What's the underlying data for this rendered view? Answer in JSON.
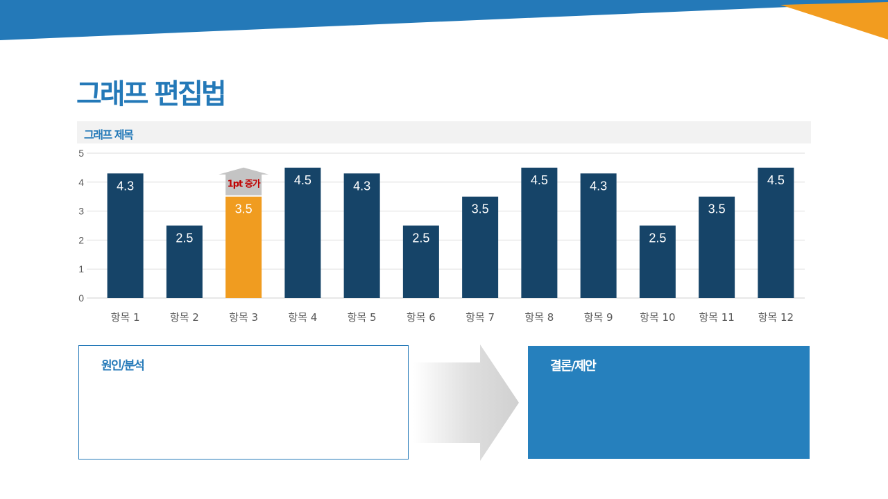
{
  "slide": {
    "title": "그래프 편집법",
    "chart_title": "그래프 제목",
    "cause_label": "원인/분석",
    "conclusion_label": "결론/제안",
    "callout_label": "1pt 증가"
  },
  "colors": {
    "primary": "#2479b8",
    "bar": "#164468",
    "highlight": "#f09c20",
    "callout_text": "#c00000",
    "accent_orange": "#f29c1f"
  },
  "chart_data": {
    "type": "bar",
    "title": "그래프 제목",
    "categories": [
      "항목 1",
      "항목 2",
      "항목 3",
      "항목 4",
      "항목 5",
      "항목 6",
      "항목 7",
      "항목 8",
      "항목 9",
      "항목 10",
      "항목 11",
      "항목 12"
    ],
    "values": [
      4.3,
      2.5,
      3.5,
      4.5,
      4.3,
      2.5,
      3.5,
      4.5,
      4.3,
      2.5,
      3.5,
      4.5
    ],
    "data_labels": [
      "4.3",
      "2.5",
      "3.5",
      "4.5",
      "4.3",
      "2.5",
      "3.5",
      "4.5",
      "4.3",
      "2.5",
      "3.5",
      "4.5"
    ],
    "highlight_index": 2,
    "ylim": [
      0,
      5
    ],
    "yticks": [
      "0",
      "1",
      "2",
      "3",
      "4",
      "5"
    ],
    "xlabel": "",
    "ylabel": "",
    "grid": true,
    "legend": "none",
    "annotation": {
      "text": "1pt 증가",
      "category": "항목 3"
    }
  }
}
